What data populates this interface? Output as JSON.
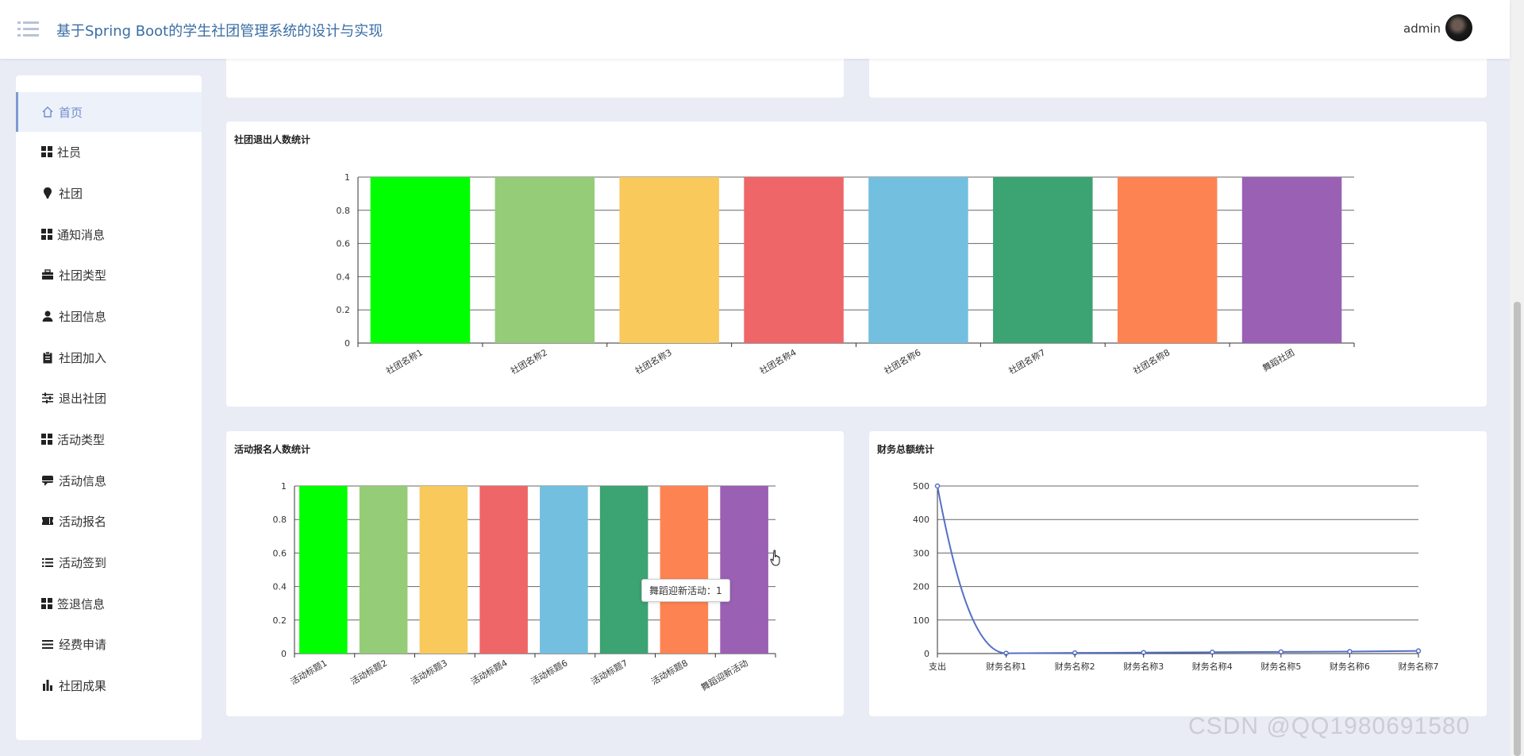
{
  "header": {
    "title": "基于Spring Boot的学生社团管理系统的设计与实现",
    "username": "admin"
  },
  "sidebar": {
    "items": [
      {
        "label": "首页",
        "icon": "home-icon",
        "active": true
      },
      {
        "label": "社员",
        "icon": "grid-icon"
      },
      {
        "label": "社团",
        "icon": "pin-icon"
      },
      {
        "label": "通知消息",
        "icon": "grid-icon"
      },
      {
        "label": "社团类型",
        "icon": "briefcase-icon"
      },
      {
        "label": "社团信息",
        "icon": "user-icon"
      },
      {
        "label": "社团加入",
        "icon": "clipboard-icon"
      },
      {
        "label": "退出社团",
        "icon": "sliders-icon"
      },
      {
        "label": "活动类型",
        "icon": "grid-icon"
      },
      {
        "label": "活动信息",
        "icon": "chat-icon"
      },
      {
        "label": "活动报名",
        "icon": "ticket-icon"
      },
      {
        "label": "活动签到",
        "icon": "list-icon"
      },
      {
        "label": "签退信息",
        "icon": "grid-icon"
      },
      {
        "label": "经费申请",
        "icon": "list-icon"
      },
      {
        "label": "社团成果",
        "icon": "bar-chart-icon"
      }
    ]
  },
  "charts": {
    "quit": {
      "title": "社团退出人数统计"
    },
    "signup": {
      "title": "活动报名人数统计"
    },
    "finance": {
      "title": "财务总额统计"
    }
  },
  "tooltip": {
    "text": "舞蹈迎新活动：1"
  },
  "watermark": "CSDN @QQ1980691580",
  "colors": {
    "palette": [
      "#00ff00",
      "#95cc77",
      "#f9c95c",
      "#ee6668",
      "#73bfdf",
      "#3ca372",
      "#fd8452",
      "#9a60b4"
    ],
    "line": "#5470c6"
  },
  "chart_data": [
    {
      "type": "bar",
      "title": "社团退出人数统计",
      "categories": [
        "社团名称1",
        "社团名称2",
        "社团名称3",
        "社团名称4",
        "社团名称6",
        "社团名称7",
        "社团名称8",
        "舞蹈社团"
      ],
      "values": [
        1,
        1,
        1,
        1,
        1,
        1,
        1,
        1
      ],
      "ylim": [
        0,
        1
      ],
      "yticks": [
        0,
        0.2,
        0.4,
        0.6,
        0.8,
        1
      ]
    },
    {
      "type": "bar",
      "title": "活动报名人数统计",
      "categories": [
        "活动标题1",
        "活动标题2",
        "活动标题3",
        "活动标题4",
        "活动标题6",
        "活动标题7",
        "活动标题8",
        "舞蹈迎新活动"
      ],
      "values": [
        1,
        1,
        1,
        1,
        1,
        1,
        1,
        1
      ],
      "ylim": [
        0,
        1
      ],
      "yticks": [
        0,
        0.2,
        0.4,
        0.6,
        0.8,
        1
      ]
    },
    {
      "type": "line",
      "title": "财务总额统计",
      "categories": [
        "支出",
        "财务名称1",
        "财务名称2",
        "财务名称3",
        "财务名称4",
        "财务名称5",
        "财务名称6",
        "财务名称7"
      ],
      "values": [
        500,
        1,
        2,
        3,
        4,
        5,
        6,
        8
      ],
      "ylim": [
        0,
        500
      ],
      "yticks": [
        0,
        100,
        200,
        300,
        400,
        500
      ]
    }
  ]
}
